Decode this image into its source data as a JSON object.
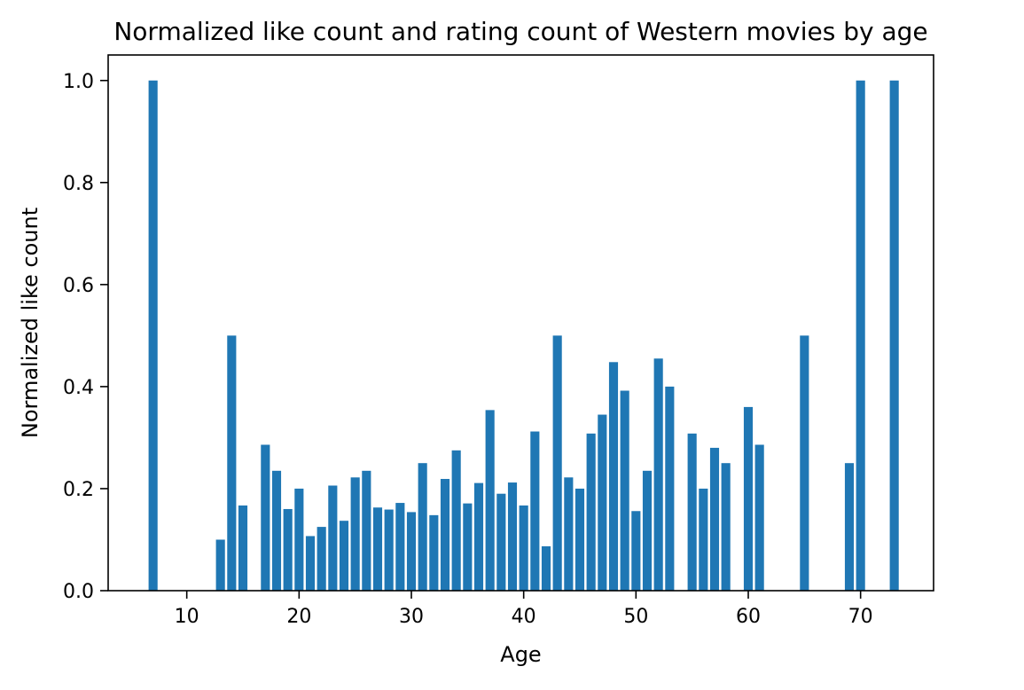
{
  "chart_data": {
    "type": "bar",
    "title": "Normalized like count and rating count of Western movies by age",
    "xlabel": "Age",
    "ylabel": "Normalized like count",
    "xlim": [
      3,
      76.5
    ],
    "ylim": [
      0,
      1.05
    ],
    "xticks": [
      10,
      20,
      30,
      40,
      50,
      60,
      70
    ],
    "yticks": [
      0.0,
      0.2,
      0.4,
      0.6,
      0.8,
      1.0
    ],
    "grid": false,
    "bar_color": "#1f77b4",
    "x": [
      7,
      13,
      14,
      15,
      17,
      18,
      19,
      20,
      21,
      22,
      23,
      24,
      25,
      26,
      27,
      28,
      29,
      30,
      31,
      32,
      33,
      34,
      35,
      36,
      37,
      38,
      39,
      40,
      41,
      42,
      43,
      44,
      45,
      46,
      47,
      48,
      49,
      50,
      51,
      52,
      53,
      55,
      56,
      57,
      58,
      60,
      61,
      65,
      69,
      70,
      73
    ],
    "values": [
      1.0,
      0.1,
      0.5,
      0.167,
      0.286,
      0.235,
      0.16,
      0.2,
      0.107,
      0.125,
      0.206,
      0.137,
      0.222,
      0.235,
      0.163,
      0.159,
      0.172,
      0.154,
      0.25,
      0.148,
      0.219,
      0.275,
      0.171,
      0.211,
      0.354,
      0.19,
      0.212,
      0.167,
      0.312,
      0.087,
      0.5,
      0.222,
      0.2,
      0.308,
      0.345,
      0.448,
      0.392,
      0.156,
      0.235,
      0.455,
      0.4,
      0.308,
      0.2,
      0.28,
      0.25,
      0.36,
      0.286,
      0.5,
      0.25,
      1.0,
      1.0
    ]
  }
}
